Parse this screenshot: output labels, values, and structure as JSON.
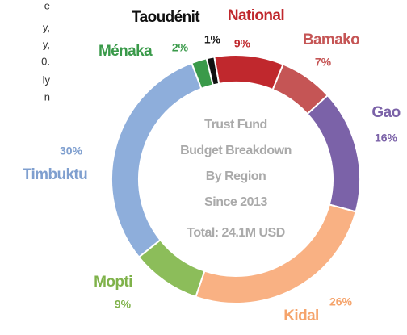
{
  "chart_data": {
    "type": "donut",
    "center_text": [
      "Trust Fund",
      "Budget Breakdown",
      "By Region",
      "Since 2013",
      "Total: 24.1M USD"
    ],
    "categories": [
      "National",
      "Bamako",
      "Gao",
      "Kidal",
      "Mopti",
      "Timbuktu",
      "Ménaka",
      "Taoudénit"
    ],
    "values": [
      9,
      7,
      16,
      26,
      9,
      30,
      2,
      1
    ],
    "value_labels": [
      "9%",
      "7%",
      "16%",
      "26%",
      "9%",
      "30%",
      "2%",
      "1%"
    ],
    "colors": [
      "#c0282d",
      "#c55555",
      "#7b62a8",
      "#f9b183",
      "#8cbd5a",
      "#8eaedb",
      "#3a9a4a",
      "#111111"
    ],
    "label_colors": [
      "#c0282d",
      "#c55555",
      "#7b62a8",
      "#f5a46c",
      "#7fb24a",
      "#7f9fcf",
      "#3a9a4a",
      "#111111"
    ]
  },
  "side_text_fragments": [
    "e",
    "y,",
    "y,",
    "0.",
    "ly",
    "n"
  ]
}
